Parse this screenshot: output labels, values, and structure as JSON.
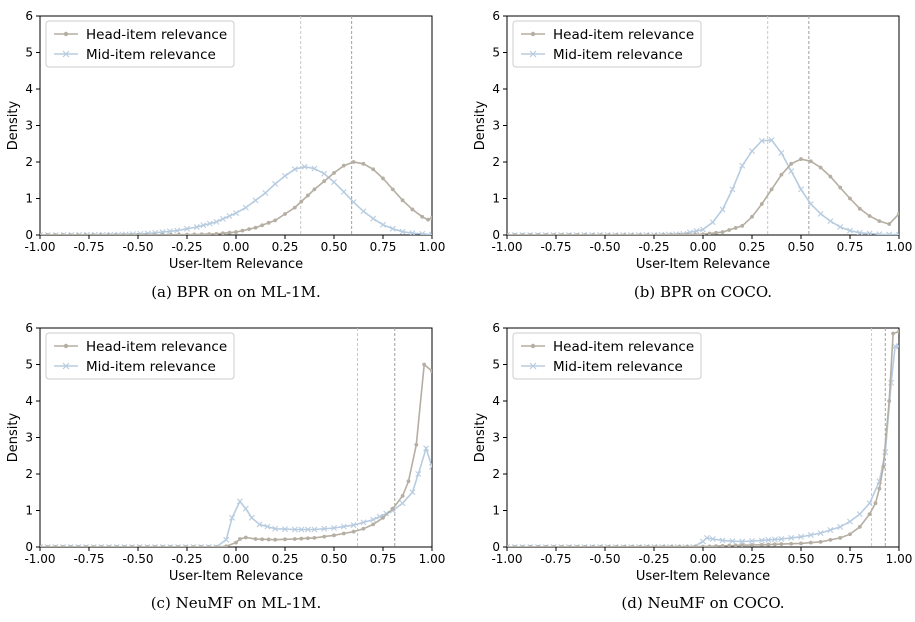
{
  "chart_data": [
    {
      "type": "line",
      "caption": "(a) BPR on on ML-1M.",
      "xlabel": "User-Item Relevance",
      "ylabel": "Density",
      "xlim": [
        -1.0,
        1.0
      ],
      "ylim": [
        0,
        6
      ],
      "xticks": [
        "-1.00",
        "-0.75",
        "-0.50",
        "-0.25",
        "0.00",
        "0.25",
        "0.50",
        "0.75",
        "1.00"
      ],
      "yticks": [
        "0",
        "1",
        "2",
        "3",
        "4",
        "5",
        "6"
      ],
      "legend_position": "top-left",
      "colors": {
        "head": "#b5aea2",
        "mid": "#b8cce0"
      },
      "vlines": [
        0.33,
        0.59
      ],
      "series": [
        {
          "name": "Head-item relevance",
          "marker": "dot",
          "points": [
            [
              -1.0,
              0
            ],
            [
              -0.5,
              0
            ],
            [
              -0.25,
              0.01
            ],
            [
              -0.1,
              0.03
            ],
            [
              0.0,
              0.08
            ],
            [
              0.1,
              0.2
            ],
            [
              0.2,
              0.4
            ],
            [
              0.3,
              0.75
            ],
            [
              0.4,
              1.25
            ],
            [
              0.5,
              1.7
            ],
            [
              0.55,
              1.9
            ],
            [
              0.6,
              2.0
            ],
            [
              0.65,
              1.95
            ],
            [
              0.7,
              1.8
            ],
            [
              0.75,
              1.55
            ],
            [
              0.8,
              1.25
            ],
            [
              0.85,
              0.95
            ],
            [
              0.9,
              0.7
            ],
            [
              0.95,
              0.5
            ],
            [
              0.98,
              0.42
            ],
            [
              1.0,
              0.47
            ]
          ]
        },
        {
          "name": "Mid-item relevance",
          "marker": "x",
          "points": [
            [
              -1.0,
              0
            ],
            [
              -0.6,
              0.01
            ],
            [
              -0.45,
              0.04
            ],
            [
              -0.3,
              0.12
            ],
            [
              -0.2,
              0.22
            ],
            [
              -0.1,
              0.36
            ],
            [
              0.0,
              0.6
            ],
            [
              0.05,
              0.75
            ],
            [
              0.1,
              0.95
            ],
            [
              0.15,
              1.15
            ],
            [
              0.2,
              1.4
            ],
            [
              0.25,
              1.62
            ],
            [
              0.3,
              1.8
            ],
            [
              0.35,
              1.87
            ],
            [
              0.4,
              1.82
            ],
            [
              0.45,
              1.68
            ],
            [
              0.5,
              1.45
            ],
            [
              0.55,
              1.18
            ],
            [
              0.6,
              0.9
            ],
            [
              0.65,
              0.65
            ],
            [
              0.7,
              0.45
            ],
            [
              0.75,
              0.28
            ],
            [
              0.8,
              0.17
            ],
            [
              0.85,
              0.09
            ],
            [
              0.9,
              0.05
            ],
            [
              1.0,
              0.01
            ]
          ]
        }
      ]
    },
    {
      "type": "line",
      "caption": "(b) BPR on COCO.",
      "xlabel": "User-Item Relevance",
      "ylabel": "Density",
      "xlim": [
        -1.0,
        1.0
      ],
      "ylim": [
        0,
        6
      ],
      "xticks": [
        "-1.00",
        "-0.75",
        "-0.50",
        "-0.25",
        "0.00",
        "0.25",
        "0.50",
        "0.75",
        "1.00"
      ],
      "yticks": [
        "0",
        "1",
        "2",
        "3",
        "4",
        "5",
        "6"
      ],
      "legend_position": "top-left",
      "colors": {
        "head": "#b5aea2",
        "mid": "#b8cce0"
      },
      "vlines": [
        0.33,
        0.54
      ],
      "series": [
        {
          "name": "Head-item relevance",
          "marker": "dot",
          "points": [
            [
              -1.0,
              0
            ],
            [
              -0.2,
              0
            ],
            [
              0.0,
              0.02
            ],
            [
              0.1,
              0.08
            ],
            [
              0.2,
              0.25
            ],
            [
              0.25,
              0.5
            ],
            [
              0.3,
              0.85
            ],
            [
              0.35,
              1.25
            ],
            [
              0.4,
              1.65
            ],
            [
              0.45,
              1.95
            ],
            [
              0.5,
              2.08
            ],
            [
              0.55,
              2.02
            ],
            [
              0.6,
              1.85
            ],
            [
              0.65,
              1.6
            ],
            [
              0.7,
              1.3
            ],
            [
              0.75,
              1.0
            ],
            [
              0.8,
              0.72
            ],
            [
              0.85,
              0.52
            ],
            [
              0.9,
              0.38
            ],
            [
              0.95,
              0.3
            ],
            [
              1.0,
              0.58
            ]
          ]
        },
        {
          "name": "Mid-item relevance",
          "marker": "x",
          "points": [
            [
              -1.0,
              0
            ],
            [
              -0.25,
              0
            ],
            [
              -0.1,
              0.03
            ],
            [
              0.0,
              0.15
            ],
            [
              0.05,
              0.35
            ],
            [
              0.1,
              0.7
            ],
            [
              0.15,
              1.25
            ],
            [
              0.2,
              1.9
            ],
            [
              0.25,
              2.3
            ],
            [
              0.3,
              2.58
            ],
            [
              0.35,
              2.6
            ],
            [
              0.4,
              2.25
            ],
            [
              0.45,
              1.75
            ],
            [
              0.5,
              1.25
            ],
            [
              0.55,
              0.85
            ],
            [
              0.6,
              0.58
            ],
            [
              0.65,
              0.38
            ],
            [
              0.7,
              0.22
            ],
            [
              0.75,
              0.12
            ],
            [
              0.8,
              0.06
            ],
            [
              0.9,
              0.02
            ],
            [
              1.0,
              0.01
            ]
          ]
        }
      ]
    },
    {
      "type": "line",
      "caption": "(c) NeuMF on ML-1M.",
      "xlabel": "User-Item Relevance",
      "ylabel": "Density",
      "xlim": [
        -1.0,
        1.0
      ],
      "ylim": [
        0,
        6
      ],
      "xticks": [
        "-1.00",
        "-0.75",
        "-0.50",
        "-0.25",
        "0.00",
        "0.25",
        "0.50",
        "0.75",
        "1.00"
      ],
      "yticks": [
        "0",
        "1",
        "2",
        "3",
        "4",
        "5",
        "6"
      ],
      "legend_position": "top-left",
      "colors": {
        "head": "#b5aea2",
        "mid": "#b8cce0"
      },
      "vlines": [
        0.62,
        0.81
      ],
      "series": [
        {
          "name": "Head-item relevance",
          "marker": "dot",
          "points": [
            [
              -1.0,
              0
            ],
            [
              -0.1,
              0
            ],
            [
              -0.05,
              0.02
            ],
            [
              0.0,
              0.12
            ],
            [
              0.02,
              0.22
            ],
            [
              0.05,
              0.26
            ],
            [
              0.1,
              0.22
            ],
            [
              0.2,
              0.2
            ],
            [
              0.3,
              0.22
            ],
            [
              0.4,
              0.25
            ],
            [
              0.5,
              0.32
            ],
            [
              0.6,
              0.42
            ],
            [
              0.65,
              0.5
            ],
            [
              0.7,
              0.62
            ],
            [
              0.75,
              0.8
            ],
            [
              0.8,
              1.05
            ],
            [
              0.85,
              1.4
            ],
            [
              0.88,
              1.8
            ],
            [
              0.92,
              2.8
            ],
            [
              0.96,
              5.0
            ],
            [
              1.0,
              4.82
            ]
          ]
        },
        {
          "name": "Mid-item relevance",
          "marker": "x",
          "points": [
            [
              -1.0,
              0
            ],
            [
              -0.1,
              0
            ],
            [
              -0.05,
              0.2
            ],
            [
              -0.02,
              0.8
            ],
            [
              0.02,
              1.25
            ],
            [
              0.05,
              1.05
            ],
            [
              0.08,
              0.8
            ],
            [
              0.12,
              0.62
            ],
            [
              0.2,
              0.5
            ],
            [
              0.3,
              0.48
            ],
            [
              0.4,
              0.48
            ],
            [
              0.5,
              0.52
            ],
            [
              0.6,
              0.6
            ],
            [
              0.7,
              0.75
            ],
            [
              0.8,
              1.0
            ],
            [
              0.85,
              1.2
            ],
            [
              0.9,
              1.5
            ],
            [
              0.93,
              2.0
            ],
            [
              0.97,
              2.7
            ],
            [
              1.0,
              2.2
            ]
          ]
        }
      ]
    },
    {
      "type": "line",
      "caption": "(d) NeuMF on COCO.",
      "xlabel": "User-Item Relevance",
      "ylabel": "Density",
      "xlim": [
        -1.0,
        1.0
      ],
      "ylim": [
        0,
        6
      ],
      "xticks": [
        "-1.00",
        "-0.75",
        "-0.50",
        "-0.25",
        "0.00",
        "0.25",
        "0.50",
        "0.75",
        "1.00"
      ],
      "yticks": [
        "0",
        "1",
        "2",
        "3",
        "4",
        "5",
        "6"
      ],
      "legend_position": "top-left",
      "colors": {
        "head": "#b5aea2",
        "mid": "#b8cce0"
      },
      "vlines": [
        0.86,
        0.93
      ],
      "series": [
        {
          "name": "Head-item relevance",
          "marker": "dot",
          "points": [
            [
              -1.0,
              0
            ],
            [
              0.0,
              0.01
            ],
            [
              0.1,
              0.03
            ],
            [
              0.2,
              0.05
            ],
            [
              0.3,
              0.06
            ],
            [
              0.4,
              0.08
            ],
            [
              0.5,
              0.1
            ],
            [
              0.6,
              0.14
            ],
            [
              0.7,
              0.25
            ],
            [
              0.75,
              0.35
            ],
            [
              0.8,
              0.55
            ],
            [
              0.85,
              0.9
            ],
            [
              0.88,
              1.2
            ],
            [
              0.9,
              1.6
            ],
            [
              0.92,
              2.2
            ],
            [
              0.95,
              4.0
            ],
            [
              0.97,
              5.85
            ],
            [
              1.0,
              5.9
            ]
          ]
        },
        {
          "name": "Mid-item relevance",
          "marker": "x",
          "points": [
            [
              -1.0,
              0
            ],
            [
              -0.05,
              0
            ],
            [
              0.0,
              0.15
            ],
            [
              0.02,
              0.25
            ],
            [
              0.05,
              0.22
            ],
            [
              0.1,
              0.18
            ],
            [
              0.15,
              0.16
            ],
            [
              0.2,
              0.15
            ],
            [
              0.3,
              0.18
            ],
            [
              0.4,
              0.22
            ],
            [
              0.5,
              0.28
            ],
            [
              0.6,
              0.38
            ],
            [
              0.7,
              0.55
            ],
            [
              0.75,
              0.7
            ],
            [
              0.8,
              0.9
            ],
            [
              0.85,
              1.2
            ],
            [
              0.9,
              1.8
            ],
            [
              0.93,
              2.6
            ],
            [
              0.96,
              4.5
            ],
            [
              0.98,
              5.5
            ],
            [
              1.0,
              5.5
            ]
          ]
        }
      ]
    }
  ]
}
